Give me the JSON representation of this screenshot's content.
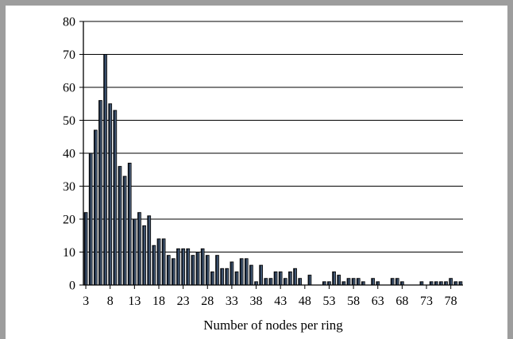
{
  "chart_data": {
    "type": "bar",
    "title": "",
    "xlabel": "Number of nodes per ring",
    "ylabel": "",
    "ylim": [
      0,
      80
    ],
    "yticks": [
      0,
      10,
      20,
      30,
      40,
      50,
      60,
      70,
      80
    ],
    "x_tick_labels": [
      "3",
      "8",
      "13",
      "18",
      "23",
      "28",
      "33",
      "38",
      "43",
      "48",
      "53",
      "58",
      "63",
      "68",
      "73",
      "78"
    ],
    "grid": true,
    "bar_color": "#2b3f5a",
    "bar_edge_color": "#000000",
    "categories": [
      3,
      4,
      5,
      6,
      7,
      8,
      9,
      10,
      11,
      12,
      13,
      14,
      15,
      16,
      17,
      18,
      19,
      20,
      21,
      22,
      23,
      24,
      25,
      26,
      27,
      28,
      29,
      30,
      31,
      32,
      33,
      34,
      35,
      36,
      37,
      38,
      39,
      40,
      41,
      42,
      43,
      44,
      45,
      46,
      47,
      48,
      49,
      50,
      51,
      52,
      53,
      54,
      55,
      56,
      57,
      58,
      59,
      60,
      61,
      62,
      63,
      64,
      65,
      66,
      67,
      68,
      69,
      70,
      71,
      72,
      73,
      74,
      75,
      76,
      77,
      78,
      79,
      80
    ],
    "values": [
      22,
      40,
      47,
      56,
      70,
      55,
      53,
      36,
      33,
      37,
      20,
      22,
      18,
      21,
      12,
      14,
      14,
      9,
      8,
      11,
      11,
      11,
      9,
      10,
      11,
      9,
      4,
      9,
      5,
      5,
      7,
      4,
      8,
      8,
      6,
      1,
      6,
      2,
      2,
      4,
      4,
      2,
      4,
      5,
      2,
      0,
      3,
      0,
      0,
      1,
      1,
      4,
      3,
      1,
      2,
      2,
      2,
      1,
      0,
      2,
      1,
      0,
      0,
      2,
      2,
      1,
      0,
      0,
      0,
      1,
      0,
      1,
      1,
      1,
      1,
      2,
      1,
      1
    ]
  }
}
